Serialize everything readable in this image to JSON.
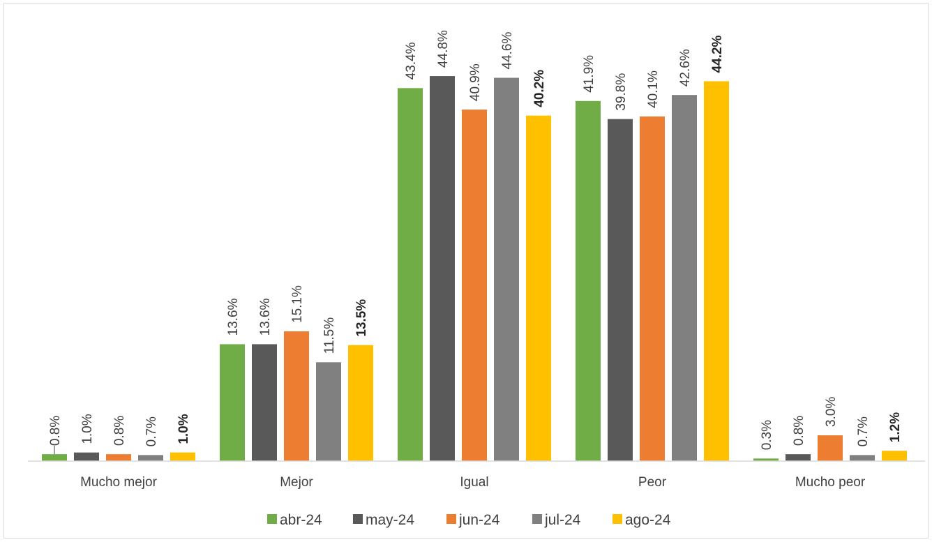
{
  "chart_data": {
    "type": "bar",
    "title": "",
    "xlabel": "",
    "ylabel": "",
    "ylim": [
      0,
      50
    ],
    "grid": false,
    "legend_position": "bottom",
    "categories": [
      "Mucho mejor",
      "Mejor",
      "Igual",
      "Peor",
      "Mucho peor"
    ],
    "series": [
      {
        "name": "abr-24",
        "color": "#70ad47",
        "values": [
          0.8,
          13.6,
          43.4,
          41.9,
          0.3
        ],
        "labels": [
          "0.8%",
          "13.6%",
          "43.4%",
          "41.9%",
          "0.3%"
        ],
        "bold_labels": false
      },
      {
        "name": "may-24",
        "color": "#595959",
        "values": [
          1.0,
          13.6,
          44.8,
          39.8,
          0.8
        ],
        "labels": [
          "1.0%",
          "13.6%",
          "44.8%",
          "39.8%",
          "0.8%"
        ],
        "bold_labels": false
      },
      {
        "name": "jun-24",
        "color": "#ed7d31",
        "values": [
          0.8,
          15.1,
          40.9,
          40.1,
          3.0
        ],
        "labels": [
          "0.8%",
          "15.1%",
          "40.9%",
          "40.1%",
          "3.0%"
        ],
        "bold_labels": false
      },
      {
        "name": "jul-24",
        "color": "#808080",
        "values": [
          0.7,
          11.5,
          44.6,
          42.6,
          0.7
        ],
        "labels": [
          "0.7%",
          "11.5%",
          "44.6%",
          "42.6%",
          "0.7%"
        ],
        "bold_labels": false
      },
      {
        "name": "ago-24",
        "color": "#ffc000",
        "values": [
          1.0,
          13.5,
          40.2,
          44.2,
          1.2
        ],
        "labels": [
          "1.0%",
          "13.5%",
          "40.2%",
          "44.2%",
          "1.2%"
        ],
        "bold_labels": true
      }
    ]
  }
}
